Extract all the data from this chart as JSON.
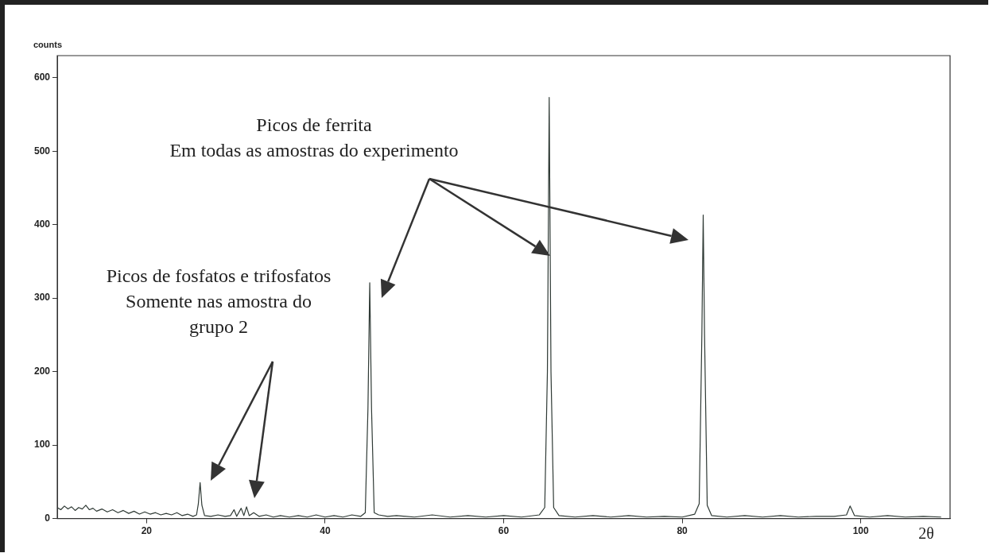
{
  "chart_data": {
    "type": "line",
    "xlabel": "2θ",
    "ylabel": "counts",
    "xlim": [
      10,
      110
    ],
    "ylim": [
      0,
      630
    ],
    "xticks": [
      20,
      40,
      60,
      80,
      100
    ],
    "yticks": [
      0,
      100,
      200,
      300,
      400,
      500,
      600
    ],
    "grid": false,
    "legend": false,
    "marker": "none",
    "line_style": "solid",
    "annotations": [
      "Picos de ferrita\nEm todas as amostras do experimento",
      "Picos de fosfatos e trifosfatos\nSomente nas amostra do\ngrupo 2"
    ],
    "series": [
      {
        "color": "#2f3a35",
        "x": [
          10.0,
          10.4,
          10.8,
          11.2,
          11.6,
          12.0,
          12.4,
          12.8,
          13.2,
          13.6,
          14.0,
          14.4,
          15.0,
          15.6,
          16.2,
          16.8,
          17.4,
          18.0,
          18.6,
          19.2,
          19.8,
          20.4,
          21.0,
          21.6,
          22.2,
          22.8,
          23.4,
          24.0,
          24.6,
          25.2,
          25.6,
          25.8,
          26.0,
          26.2,
          26.5,
          27.2,
          28.0,
          28.8,
          29.4,
          29.8,
          30.1,
          30.6,
          30.9,
          31.2,
          31.5,
          32.0,
          32.6,
          33.4,
          34.2,
          35.0,
          36.0,
          37.0,
          38.0,
          39.0,
          40.0,
          41.0,
          42.0,
          43.0,
          44.0,
          44.5,
          44.8,
          45.0,
          45.2,
          45.5,
          46.0,
          47.0,
          48.0,
          50.0,
          52.0,
          54.0,
          56.0,
          58.0,
          60.0,
          62.0,
          64.0,
          64.6,
          64.9,
          65.1,
          65.3,
          65.6,
          66.2,
          68.0,
          70.0,
          72.0,
          74.0,
          76.0,
          78.0,
          80.0,
          81.4,
          81.9,
          82.2,
          82.35,
          82.5,
          82.8,
          83.3,
          85.0,
          87.0,
          89.0,
          91.0,
          93.0,
          95.0,
          97.0,
          98.4,
          98.8,
          99.0,
          99.3,
          101.0,
          103.0,
          105.0,
          107.0,
          109.0
        ],
        "values": [
          15,
          12,
          17,
          13,
          16,
          11,
          15,
          13,
          18,
          12,
          14,
          10,
          13,
          9,
          12,
          8,
          11,
          7,
          10,
          6,
          9,
          6,
          8,
          5,
          7,
          5,
          8,
          4,
          6,
          3,
          5,
          20,
          49,
          18,
          4,
          3,
          5,
          3,
          4,
          12,
          3,
          14,
          4,
          16,
          4,
          8,
          3,
          5,
          2,
          4,
          2,
          4,
          2,
          5,
          2,
          4,
          2,
          5,
          3,
          8,
          150,
          321,
          150,
          8,
          5,
          3,
          4,
          2,
          5,
          2,
          4,
          2,
          4,
          2,
          5,
          15,
          200,
          573,
          200,
          15,
          4,
          2,
          4,
          2,
          4,
          2,
          3,
          2,
          6,
          20,
          250,
          413,
          250,
          18,
          4,
          2,
          4,
          2,
          4,
          2,
          3,
          3,
          5,
          17,
          12,
          4,
          2,
          4,
          2,
          3,
          2
        ]
      }
    ]
  }
}
